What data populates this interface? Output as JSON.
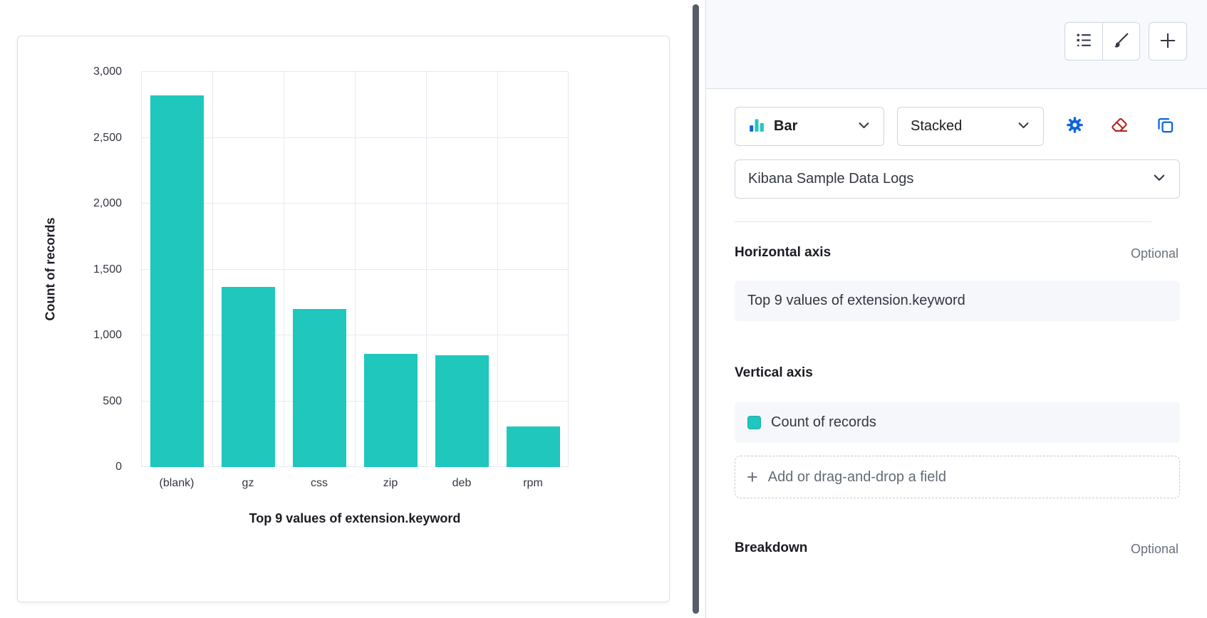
{
  "chart_data": {
    "type": "bar",
    "title": "",
    "categories": [
      "(blank)",
      "gz",
      "css",
      "zip",
      "deb",
      "rpm"
    ],
    "values": [
      2820,
      1370,
      1200,
      860,
      850,
      310
    ],
    "series_name": "Count of records",
    "xlabel": "Top 9 values of extension.keyword",
    "ylabel": "Count of records",
    "ylim": [
      0,
      3000
    ],
    "yticks": [
      0,
      500,
      1000,
      1500,
      2000,
      2500,
      3000
    ],
    "ytick_labels": [
      "0",
      "500",
      "1,000",
      "1,500",
      "2,000",
      "2,500",
      "3,000"
    ],
    "bar_color": "#1FC7BD",
    "grid": true,
    "legend": "none"
  },
  "config_panel": {
    "header_icons": [
      "layer-list-icon",
      "brush-icon",
      "plus-icon"
    ],
    "chart_type_select": {
      "label": "Bar",
      "icon": "bar-chart-icon"
    },
    "stack_select": {
      "label": "Stacked"
    },
    "toolbar_icons": [
      "gear-icon",
      "eraser-icon",
      "duplicate-icon"
    ],
    "data_view_select": {
      "label": "Kibana Sample Data Logs"
    },
    "horizontal_axis": {
      "title": "Horizontal axis",
      "badge": "Optional",
      "field_label": "Top 9 values of extension.keyword"
    },
    "vertical_axis": {
      "title": "Vertical axis",
      "field_label": "Count of records",
      "swatch_color": "#1FC7BD",
      "add_field_label": "Add or drag-and-drop a field"
    },
    "breakdown": {
      "title": "Breakdown",
      "badge": "Optional"
    }
  },
  "colors": {
    "bar": "#1FC7BD",
    "accent_blue": "#0B64DD",
    "danger_red": "#B3261E",
    "grid": "#E5EAF1"
  }
}
